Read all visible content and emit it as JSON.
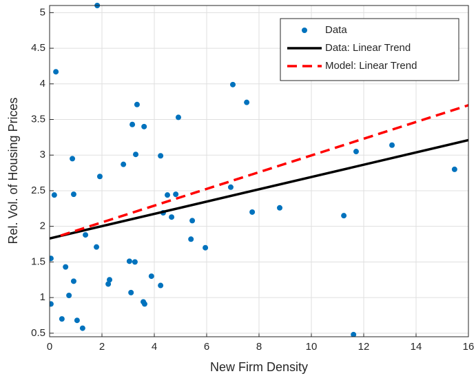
{
  "chart_data": {
    "type": "scatter",
    "xlabel": "New Firm Density",
    "ylabel": "Rel. Vol. of Housing Prices",
    "xlim": [
      0,
      16
    ],
    "ylim": [
      0.45,
      5.1
    ],
    "xticks": [
      0,
      2,
      4,
      6,
      8,
      10,
      12,
      14,
      16
    ],
    "yticks": [
      0.5,
      1,
      1.5,
      2,
      2.5,
      3,
      3.5,
      4,
      4.5,
      5
    ],
    "grid": true,
    "legend": "northeast",
    "series": [
      {
        "name": "Data",
        "type": "scatter",
        "color": "#0072bd",
        "x": [
          1.82,
          0.24,
          0.18,
          0.05,
          0.05,
          0.47,
          0.61,
          0.74,
          0.87,
          0.92,
          0.92,
          1.05,
          1.26,
          1.37,
          1.79,
          1.92,
          2.24,
          2.29,
          2.82,
          3.05,
          3.11,
          3.16,
          3.26,
          3.29,
          3.34,
          3.58,
          3.61,
          3.63,
          3.89,
          4.24,
          4.24,
          4.34,
          4.5,
          4.66,
          4.82,
          4.92,
          5.4,
          5.45,
          5.95,
          6.92,
          7.0,
          7.53,
          7.74,
          8.79,
          11.24,
          11.61,
          11.71,
          13.08,
          15.47
        ],
        "y": [
          5.1,
          4.17,
          2.44,
          1.55,
          0.91,
          0.7,
          1.43,
          1.03,
          2.95,
          2.45,
          1.23,
          0.68,
          0.57,
          1.88,
          1.71,
          2.7,
          1.19,
          1.25,
          2.87,
          1.51,
          1.07,
          3.43,
          1.5,
          3.01,
          3.71,
          0.94,
          3.4,
          0.91,
          1.3,
          2.99,
          1.17,
          2.19,
          2.44,
          2.13,
          2.45,
          3.53,
          1.82,
          2.08,
          1.7,
          2.55,
          3.99,
          3.74,
          2.2,
          2.26,
          2.15,
          0.48,
          3.05,
          3.14,
          2.8
        ]
      },
      {
        "name": "Data: Linear Trend",
        "type": "line",
        "color": "#000000",
        "dashed": false,
        "x": [
          0,
          16
        ],
        "y": [
          1.83,
          3.21
        ]
      },
      {
        "name": "Model: Linear Trend",
        "type": "line",
        "color": "#ff0000",
        "dashed": true,
        "x": [
          0.42,
          16
        ],
        "y": [
          1.87,
          3.7
        ]
      }
    ]
  }
}
